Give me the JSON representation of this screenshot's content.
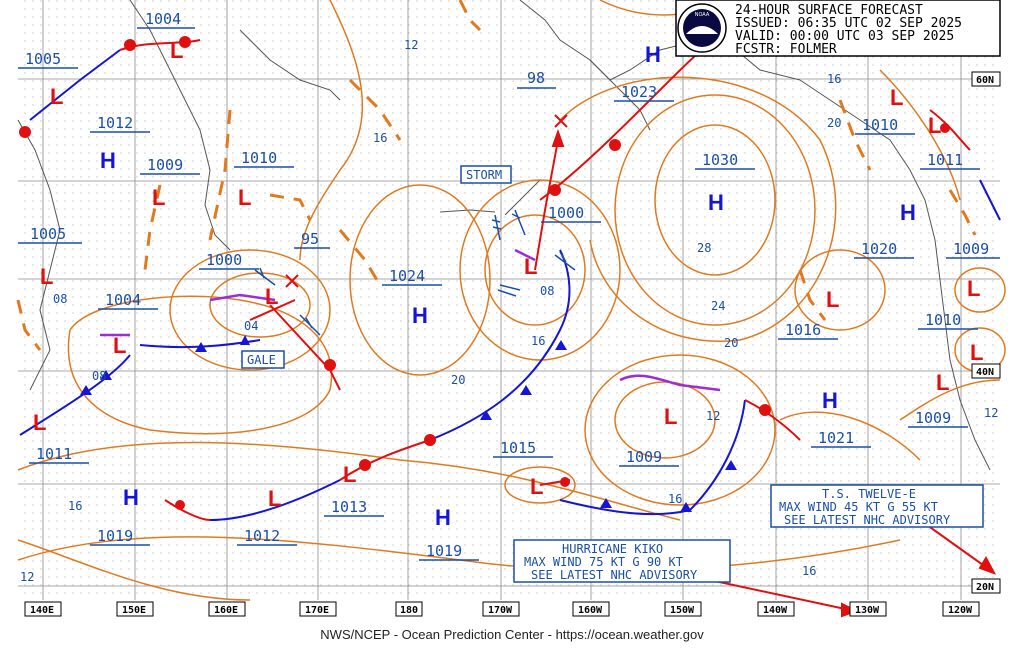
{
  "header": {
    "line1": "24-HOUR SURFACE FORECAST",
    "line2": "ISSUED: 06:35 UTC 02 SEP 2025",
    "line3": "VALID:  00:00 UTC 03 SEP 2025",
    "line4": "FCSTR:  FOLMER",
    "logo_text": "NOAA"
  },
  "footer": "NWS/NCEP - Ocean Prediction Center - https://ocean.weather.gov",
  "longitude_labels": [
    "140E",
    "150E",
    "160E",
    "170E",
    "180",
    "170W",
    "160W",
    "150W",
    "140W",
    "130W",
    "120W"
  ],
  "latitude_labels": [
    "60N",
    "40N",
    "20N"
  ],
  "pressure_labels": [
    "1004",
    "1005",
    "1012",
    "1009",
    "1010",
    "1005",
    "1000",
    "1004",
    "1011",
    "95",
    "1024",
    "98",
    "1023",
    "1030",
    "1000",
    "1010",
    "1011",
    "1020",
    "1009",
    "1016",
    "1010",
    "1015",
    "1009",
    "1021",
    "1009",
    "1013",
    "1012",
    "1019",
    "1019"
  ],
  "isobar_labels": [
    "12",
    "16",
    "08",
    "04",
    "08",
    "20",
    "16",
    "28",
    "24",
    "20",
    "12",
    "16",
    "16",
    "12",
    "12",
    "08",
    "16",
    "20",
    "16",
    "12"
  ],
  "highs": [
    "H",
    "H",
    "H",
    "H",
    "H",
    "H",
    "H",
    "H",
    "H"
  ],
  "lows": [
    "L",
    "L",
    "L",
    "L",
    "L",
    "L",
    "L",
    "L",
    "L",
    "L",
    "L",
    "L",
    "L",
    "L",
    "L",
    "L",
    "L",
    "L",
    "L",
    "L"
  ],
  "warnings": {
    "storm": "STORM",
    "gale": "GALE"
  },
  "advisories": {
    "kiko": [
      "HURRICANE KIKO",
      "MAX WIND 75 KT G 90 KT",
      "SEE LATEST NHC ADVISORY"
    ],
    "twelve_e": [
      "T.S. TWELVE-E",
      "MAX WIND 45 KT G 55 KT",
      "SEE LATEST NHC ADVISORY"
    ]
  },
  "colors": {
    "isobar": "#e07a1f",
    "cold_front": "#1515d6",
    "warm_front": "#e01010",
    "occluded_front": "#9b2fd6",
    "label_text": "#1a4fa8",
    "grid": "#8c8c8c",
    "coast": "#555555"
  }
}
